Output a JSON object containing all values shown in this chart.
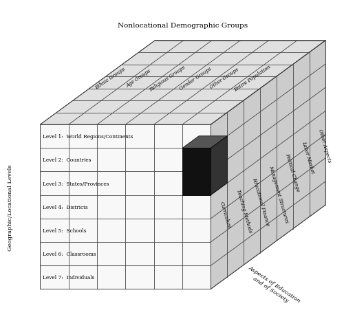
{
  "title_top": "Nonlocational Demographic Groups",
  "top_labels": [
    "Ethnic Groups",
    "Age Groups",
    "Religious Groups",
    "Gender Groups",
    "Other Groups",
    "Entire Population"
  ],
  "left_labels": [
    "Level 1:  World Regions/Continents",
    "Level 2:  Countries",
    "Level 3:  States/Provinces",
    "Level 4:  Districts",
    "Level 5:  Schools",
    "Level 6:  Classrooms",
    "Level 7:  Individuals"
  ],
  "right_labels": [
    "Curriculum",
    "Teaching Methods",
    "Educational Finance",
    "Management Structures",
    "Political Change",
    "Labor Market",
    "Other Aspects"
  ],
  "ylabel_left": "Geographic/Locational Levels",
  "ylabel_right": "Aspects of Education\nand of Society",
  "n_cols": 6,
  "n_rows": 7,
  "n_depth": 7,
  "grid_color": "#444444",
  "face_color_front": "#f8f8f8",
  "face_color_top": "#e0e0e0",
  "face_color_right": "#cccccc",
  "highlight_col": 5,
  "highlight_row": 1,
  "highlight_depth": 1
}
